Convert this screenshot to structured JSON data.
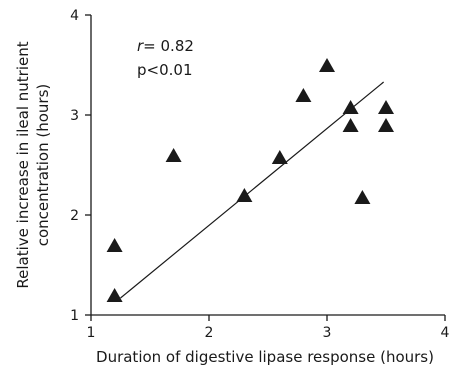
{
  "chart_data": {
    "type": "scatter",
    "xlabel": "Duration of digestive lipase response (hours)",
    "ylabel_lines": [
      "Relative increase in ileal nutrient",
      "concentration (hours)"
    ],
    "xlim": [
      1,
      4
    ],
    "ylim": [
      1,
      4
    ],
    "x_ticks": [
      1,
      2,
      3,
      4
    ],
    "y_ticks": [
      1,
      2,
      3,
      4
    ],
    "marker": "filled-triangle",
    "marker_color": "#1a1a1a",
    "points": [
      {
        "x": 1.2,
        "y": 1.2
      },
      {
        "x": 1.2,
        "y": 1.7
      },
      {
        "x": 1.7,
        "y": 2.6
      },
      {
        "x": 2.3,
        "y": 2.2
      },
      {
        "x": 2.6,
        "y": 2.58
      },
      {
        "x": 2.8,
        "y": 3.2
      },
      {
        "x": 3.0,
        "y": 3.5
      },
      {
        "x": 3.2,
        "y": 3.08
      },
      {
        "x": 3.2,
        "y": 2.9
      },
      {
        "x": 3.3,
        "y": 2.18
      },
      {
        "x": 3.5,
        "y": 3.08
      },
      {
        "x": 3.5,
        "y": 2.9
      }
    ],
    "regression_line": {
      "x1": 1.25,
      "y1": 1.17,
      "x2": 3.48,
      "y2": 3.33
    },
    "annotations": {
      "r_label": "r",
      "r_value": "= 0.82",
      "p_value": "p<0.01"
    },
    "grid": false,
    "legend": "none"
  }
}
